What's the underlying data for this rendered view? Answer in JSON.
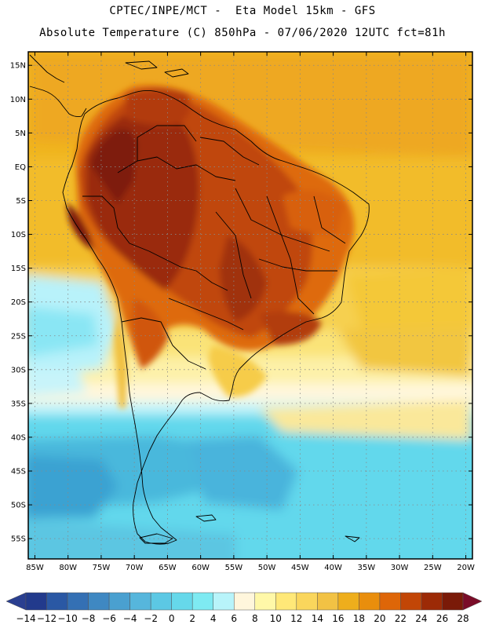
{
  "header": {
    "line1": "CPTEC/INPE/MCT -  Eta Model 15km - GFS",
    "line2": "Absolute Temperature (C) 850hPa - 07/06/2020 12UTC fct=81h"
  },
  "map": {
    "lat_labels": [
      "15N",
      "10N",
      "5N",
      "EQ",
      "5S",
      "10S",
      "15S",
      "20S",
      "25S",
      "30S",
      "35S",
      "40S",
      "45S",
      "50S",
      "55S"
    ],
    "lat_values": [
      15,
      10,
      5,
      0,
      -5,
      -10,
      -15,
      -20,
      -25,
      -30,
      -35,
      -40,
      -45,
      -50,
      -55
    ],
    "lon_labels": [
      "85W",
      "80W",
      "75W",
      "70W",
      "65W",
      "60W",
      "55W",
      "50W",
      "45W",
      "40W",
      "35W",
      "30W",
      "25W",
      "20W"
    ],
    "lon_values": [
      -85,
      -80,
      -75,
      -70,
      -65,
      -60,
      -55,
      -50,
      -45,
      -40,
      -35,
      -30,
      -25,
      -20
    ],
    "lat_range": [
      -58,
      17
    ],
    "lon_range": [
      -86,
      -19
    ]
  },
  "colorbar": {
    "labels": [
      "-14",
      "-12",
      "-10",
      "-8",
      "-6",
      "-4",
      "-2",
      "0",
      "2",
      "4",
      "6",
      "8",
      "10",
      "12",
      "14",
      "16",
      "18",
      "20",
      "22",
      "24",
      "26",
      "28"
    ],
    "colors": [
      "#223a8c",
      "#2a58a4",
      "#3470b4",
      "#3f88c2",
      "#4aa0d0",
      "#56b6dc",
      "#5cc8e4",
      "#66d8ea",
      "#7eeaf2",
      "#b8f4fa",
      "#fff6dc",
      "#fff8a8",
      "#ffe878",
      "#fad65c",
      "#f2c244",
      "#eeae1c",
      "#e98e0c",
      "#de6608",
      "#c24606",
      "#9c2a06",
      "#7a1a08"
    ],
    "left_cap": "#2a3f90",
    "right_cap": "#7a0c28"
  }
}
